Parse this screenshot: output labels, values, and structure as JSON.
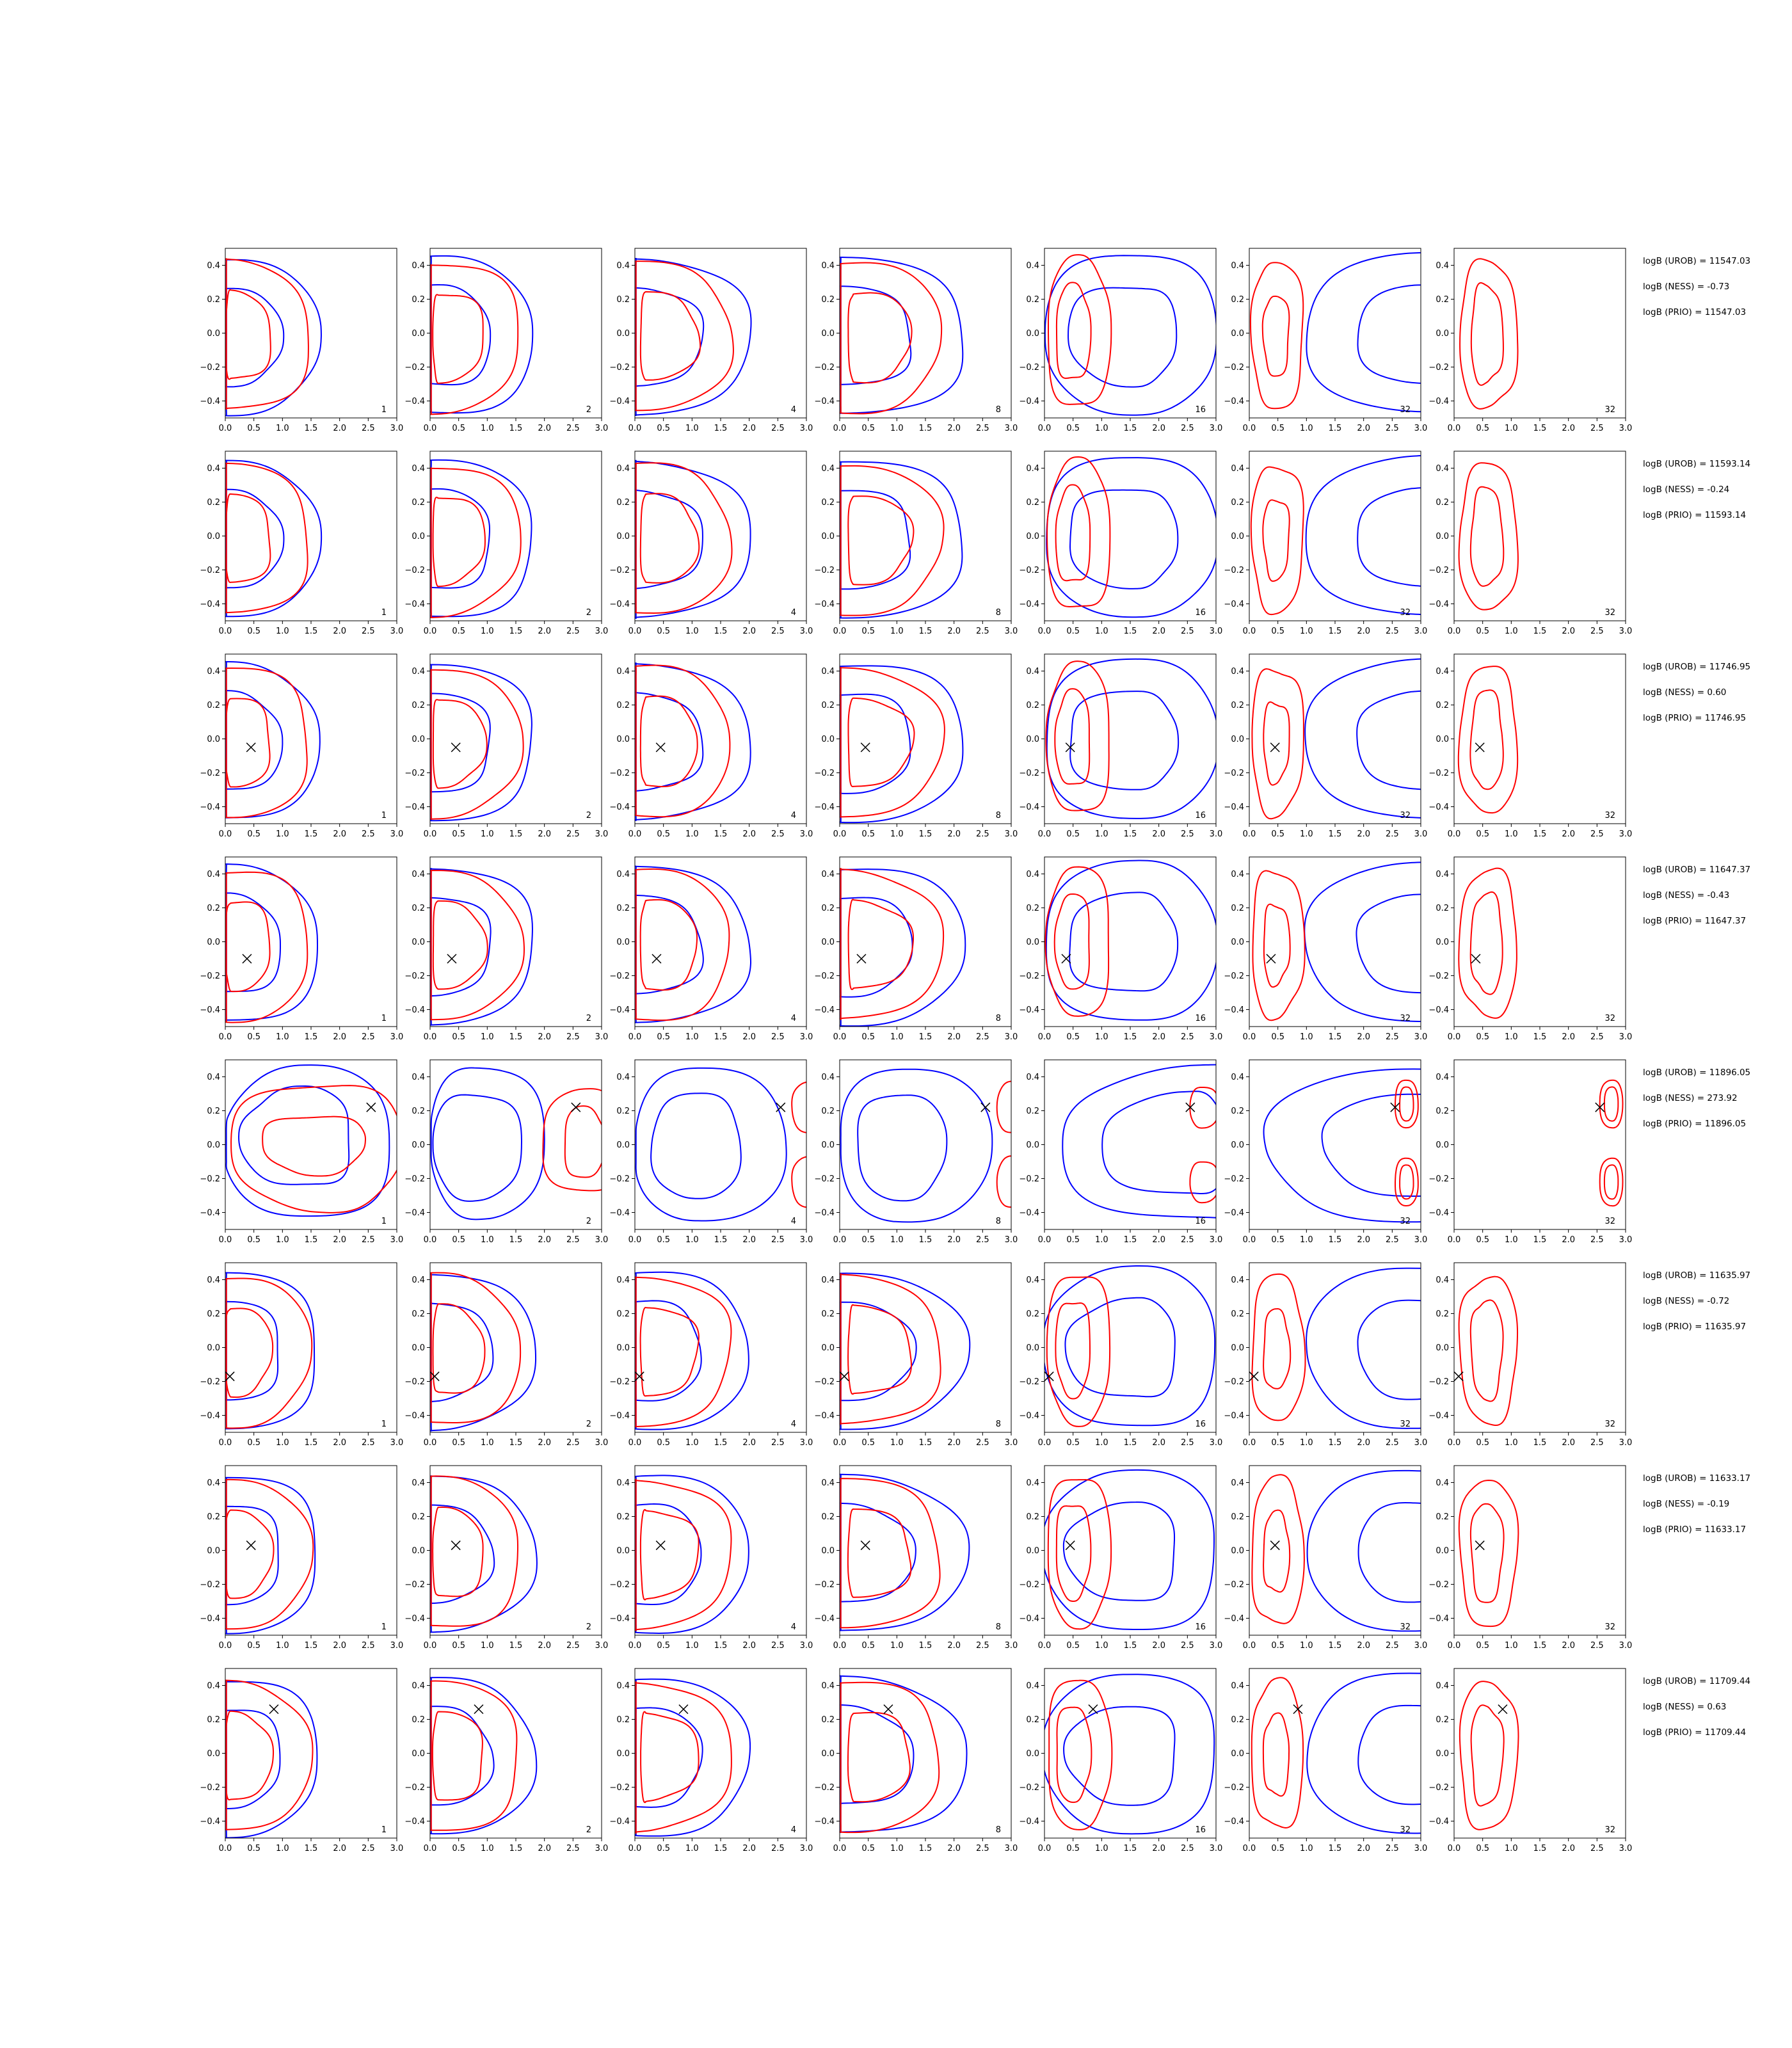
{
  "colors": {
    "blue": "#0000ff",
    "red": "#ff0000",
    "marker": "#000000",
    "axes": "#000000"
  },
  "chart_data": {
    "type": "contour-grid",
    "rows": 8,
    "cols": 7,
    "xlim": [
      0.0,
      3.0
    ],
    "ylim": [
      -0.5,
      0.5
    ],
    "xticks": [
      "0.0",
      "0.5",
      "1.0",
      "1.5",
      "2.0",
      "2.5",
      "3.0"
    ],
    "yticks": [
      "−0.4",
      "−0.2",
      "0.0",
      "0.2",
      "0.4"
    ],
    "ytick_values": [
      -0.4,
      -0.2,
      0.0,
      0.2,
      0.4
    ],
    "xtick_values": [
      0.0,
      0.5,
      1.0,
      1.5,
      2.0,
      2.5,
      3.0
    ],
    "column_labels": [
      "1",
      "2",
      "4",
      "8",
      "16",
      "32",
      "32"
    ],
    "markers": [
      null,
      null,
      [
        0.45,
        -0.05
      ],
      [
        0.38,
        -0.1
      ],
      [
        2.55,
        0.22
      ],
      [
        0.08,
        -0.17
      ],
      [
        0.45,
        0.03
      ],
      [
        0.85,
        0.26
      ]
    ],
    "annotations": [
      [
        "logB (UROB) = 11547.03",
        "logB (NESS) = -0.73",
        "logB (PRIO) = 11547.03"
      ],
      [
        "logB (UROB) = 11593.14",
        "logB (NESS) = -0.24",
        "logB (PRIO) = 11593.14"
      ],
      [
        "logB (UROB) = 11746.95",
        "logB (NESS) = 0.60",
        "logB (PRIO) = 11746.95"
      ],
      [
        "logB (UROB) = 11647.37",
        "logB (NESS) = -0.43",
        "logB (PRIO) = 11647.37"
      ],
      [
        "logB (UROB) = 11896.05",
        "logB (NESS) = 273.92",
        "logB (PRIO) = 11896.05"
      ],
      [
        "logB (UROB) = 11635.97",
        "logB (NESS) = -0.72",
        "logB (PRIO) = 11635.97"
      ],
      [
        "logB (UROB) = 11633.17",
        "logB (NESS) = -0.19",
        "logB (PRIO) = 11633.17"
      ],
      [
        "logB (UROB) = 11709.44",
        "logB (NESS) = 0.63",
        "logB (PRIO) = 11709.44"
      ]
    ],
    "contours": {
      "normal_blue": [
        {
          "cx": 0.0,
          "cy": -0.02,
          "x0": 0.0,
          "x1": 1.7,
          "ry": 0.47
        },
        {
          "cx": 0.0,
          "cy": -0.02,
          "x0": 0.0,
          "x1": 1.0,
          "ry": 0.3
        }
      ],
      "normal_red": [
        {
          "cx": 0.0,
          "cy": -0.02,
          "x0": 0.0,
          "x1": 1.55,
          "ry": 0.44
        },
        {
          "cx": 0.0,
          "cy": -0.02,
          "x0": 0.0,
          "x1": 0.85,
          "ry": 0.27
        }
      ]
    }
  }
}
